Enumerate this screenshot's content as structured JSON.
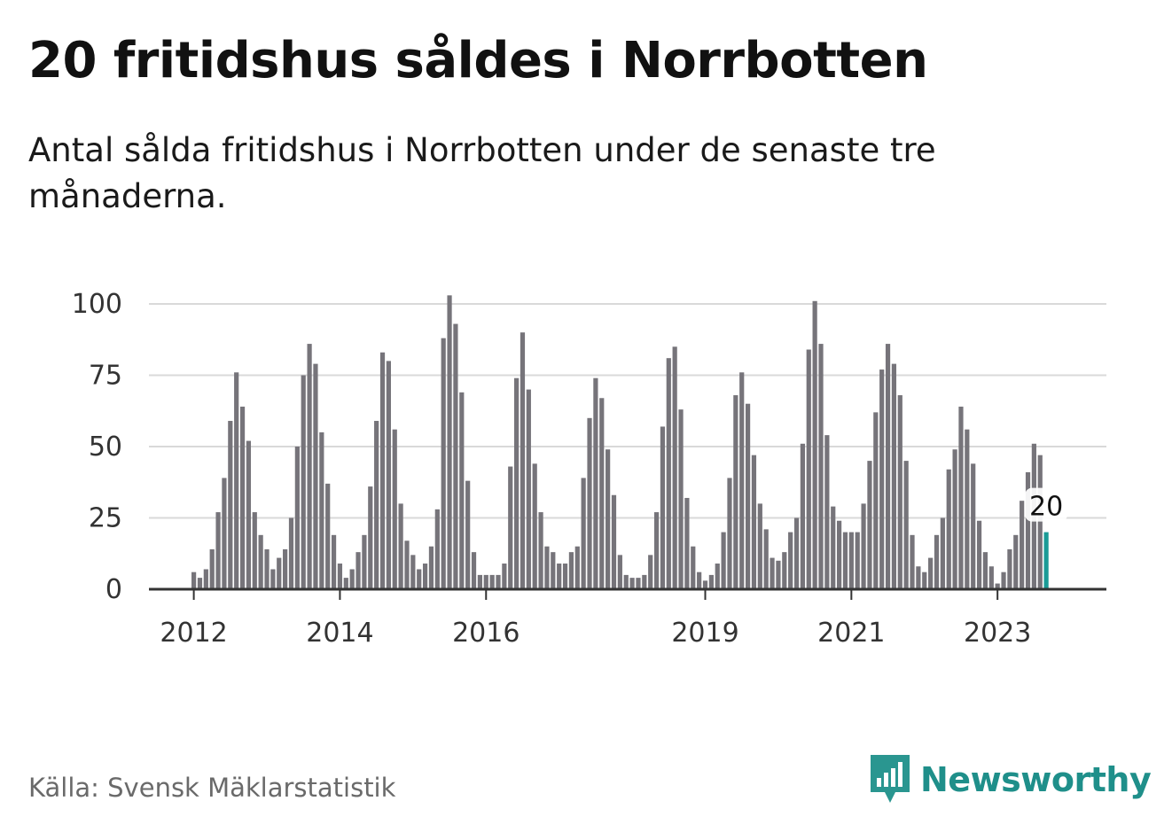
{
  "title": "20 fritidshus såldes i Norrbotten",
  "subtitle": "Antal sålda fritidshus i Norrbotten under de senaste tre månaderna.",
  "source": "Källa: Svensk Mäklarstatistik",
  "brand": {
    "name": "Newsworthy",
    "icon": "newsworthy-logo-icon",
    "color": "#1f8f8a"
  },
  "colors": {
    "bar": "#76747a",
    "highlight": "#1a9b96",
    "grid": "#d9d9d9",
    "axis": "#333333"
  },
  "chart_data": {
    "type": "bar",
    "title": "20 fritidshus såldes i Norrbotten",
    "xlabel": "",
    "ylabel": "",
    "ylim": [
      0,
      100
    ],
    "yticks": [
      0,
      25,
      50,
      75,
      100
    ],
    "grid": true,
    "x_tick_labels": [
      "2012",
      "2014",
      "2016",
      "2019",
      "2021",
      "2023"
    ],
    "start": "2012-01",
    "frequency": "monthly",
    "values": [
      6,
      4,
      7,
      14,
      27,
      39,
      59,
      76,
      64,
      52,
      27,
      19,
      14,
      7,
      11,
      14,
      25,
      50,
      75,
      86,
      79,
      55,
      37,
      19,
      9,
      4,
      7,
      13,
      19,
      36,
      59,
      83,
      80,
      56,
      30,
      17,
      12,
      7,
      9,
      15,
      28,
      88,
      103,
      93,
      69,
      38,
      13,
      5,
      5,
      5,
      5,
      9,
      43,
      74,
      90,
      70,
      44,
      27,
      15,
      13,
      9,
      9,
      13,
      15,
      39,
      60,
      74,
      67,
      49,
      33,
      12,
      5,
      4,
      4,
      5,
      12,
      27,
      57,
      81,
      85,
      63,
      32,
      15,
      6,
      3,
      5,
      9,
      20,
      39,
      68,
      76,
      65,
      47,
      30,
      21,
      11,
      10,
      13,
      20,
      25,
      51,
      84,
      101,
      86,
      54,
      29,
      24,
      20,
      20,
      20,
      30,
      45,
      62,
      77,
      86,
      79,
      68,
      45,
      19,
      8,
      6,
      11,
      19,
      25,
      42,
      49,
      64,
      56,
      44,
      24,
      13,
      8,
      2,
      6,
      14,
      19,
      31,
      41,
      51,
      47,
      20
    ],
    "highlight_index": 140,
    "highlight_label": "20"
  }
}
